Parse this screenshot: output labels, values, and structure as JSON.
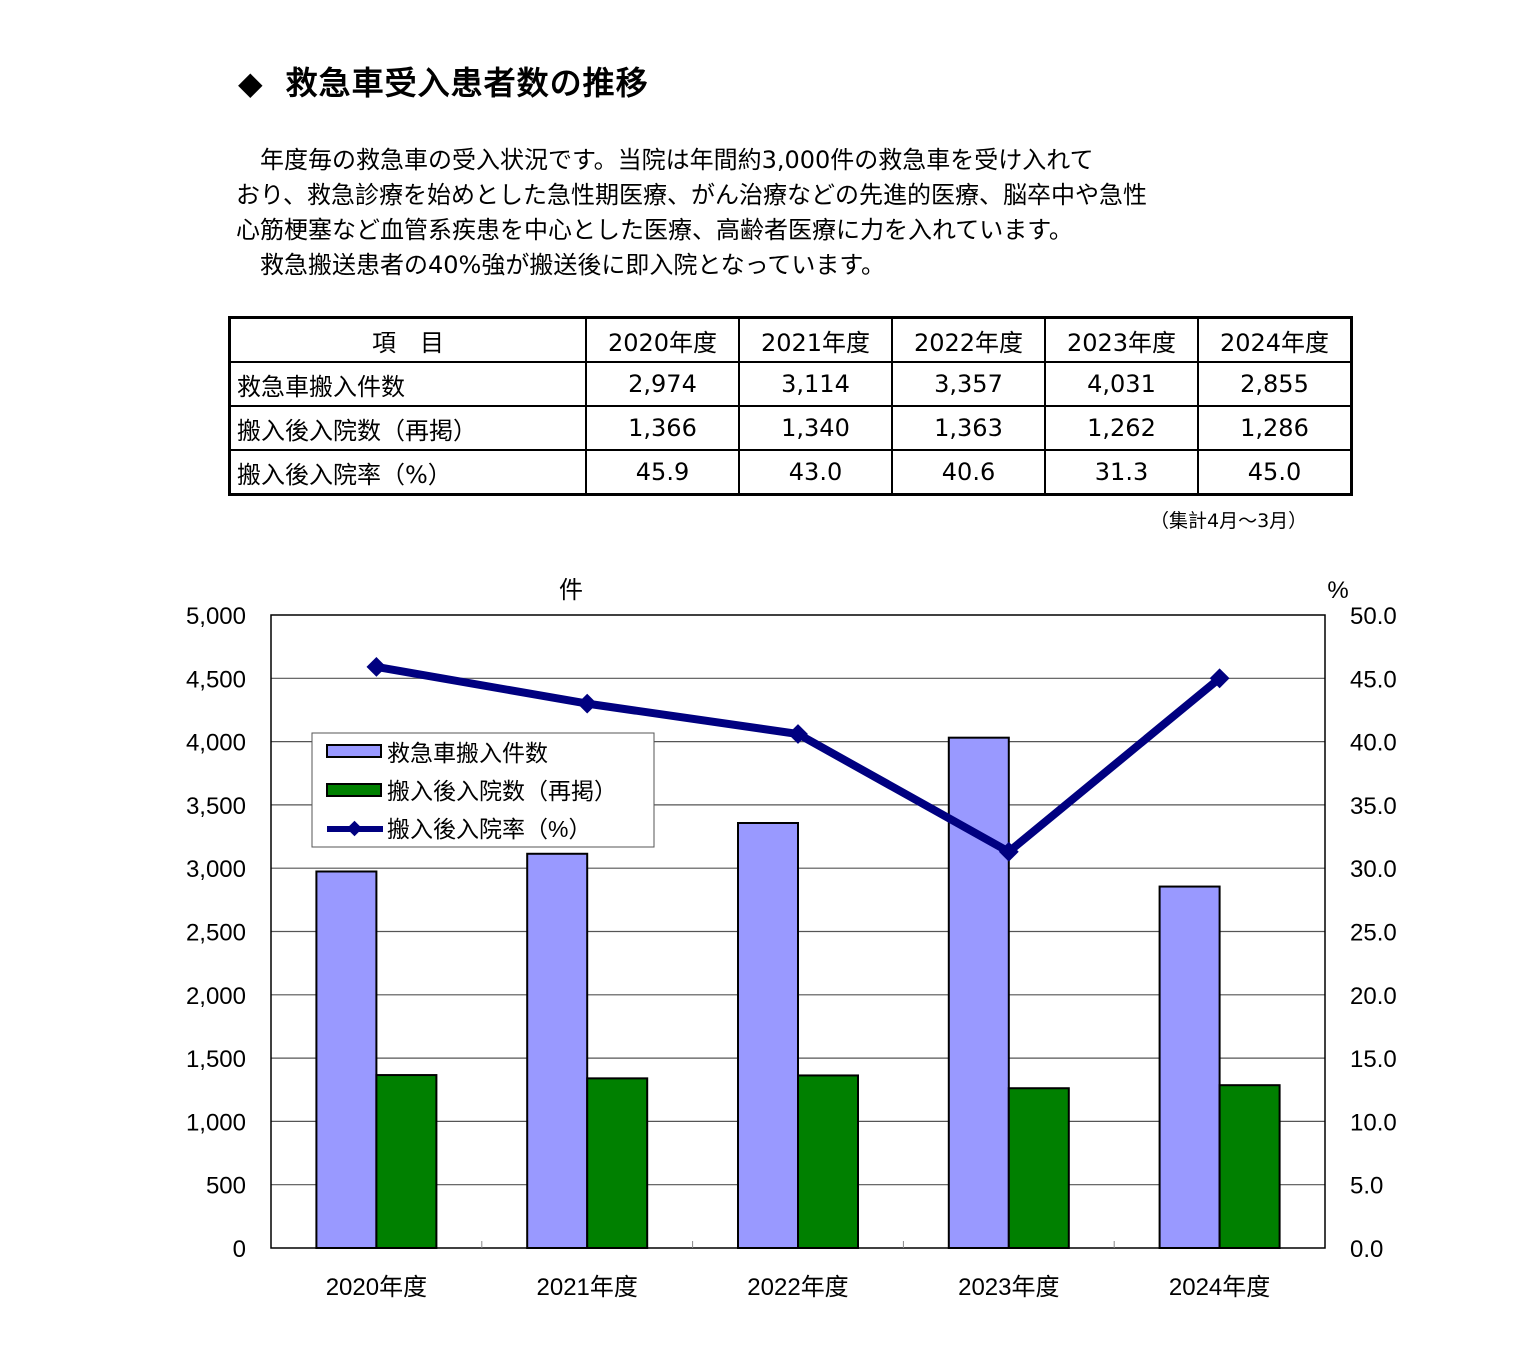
{
  "title": {
    "marker": "◆",
    "text": "救急車受入患者数の推移"
  },
  "intro": [
    "　年度毎の救急車の受入状況です。当院は年間約3,000件の救急車を受け入れて",
    "おり、救急診療を始めとした急性期医療、がん治療などの先進的医療、脳卒中や急性",
    "心筋梗塞など血管系疾患を中心とした医療、高齢者医療に力を入れています。",
    "　救急搬送患者の40%強が搬送後に即入院となっています。"
  ],
  "table": {
    "header": [
      "項　目",
      "2020年度",
      "2021年度",
      "2022年度",
      "2023年度",
      "2024年度"
    ],
    "rows": [
      {
        "label": "救急車搬入件数",
        "values": [
          "2,974",
          "3,114",
          "3,357",
          "4,031",
          "2,855"
        ]
      },
      {
        "label": "搬入後入院数（再掲）",
        "values": [
          "1,366",
          "1,340",
          "1,363",
          "1,262",
          "1,286"
        ]
      },
      {
        "label": "搬入後入院率（%）",
        "values": [
          "45.9",
          "43.0",
          "40.6",
          "31.3",
          "45.0"
        ]
      }
    ],
    "note": "（集計4月～3月）"
  },
  "chart_data": {
    "type": "bar",
    "title": "",
    "categories": [
      "2020年度",
      "2021年度",
      "2022年度",
      "2023年度",
      "2024年度"
    ],
    "series": [
      {
        "name": "救急車搬入件数",
        "type": "bar",
        "axis": "left",
        "color": "#9999ff",
        "values": [
          2974,
          3114,
          3357,
          4031,
          2855
        ]
      },
      {
        "name": "搬入後入院数（再掲）",
        "type": "bar",
        "axis": "left",
        "color": "#008000",
        "values": [
          1366,
          1340,
          1363,
          1262,
          1286
        ]
      },
      {
        "name": "搬入後入院率（%）",
        "type": "line",
        "axis": "right",
        "color": "#000080",
        "marker": "diamond",
        "values": [
          45.9,
          43.0,
          40.6,
          31.3,
          45.0
        ]
      }
    ],
    "ylabel": "件",
    "y2label": "%",
    "ylim": [
      0,
      5000
    ],
    "y2lim": [
      0,
      50
    ],
    "yticks": [
      "0",
      "500",
      "1,000",
      "1,500",
      "2,000",
      "2,500",
      "3,000",
      "3,500",
      "4,000",
      "4,500",
      "5,000"
    ],
    "y2ticks": [
      "0.0",
      "5.0",
      "10.0",
      "15.0",
      "20.0",
      "25.0",
      "30.0",
      "35.0",
      "40.0",
      "45.0",
      "50.0"
    ],
    "grid": true,
    "legend_position": "upper-left inside plot"
  }
}
